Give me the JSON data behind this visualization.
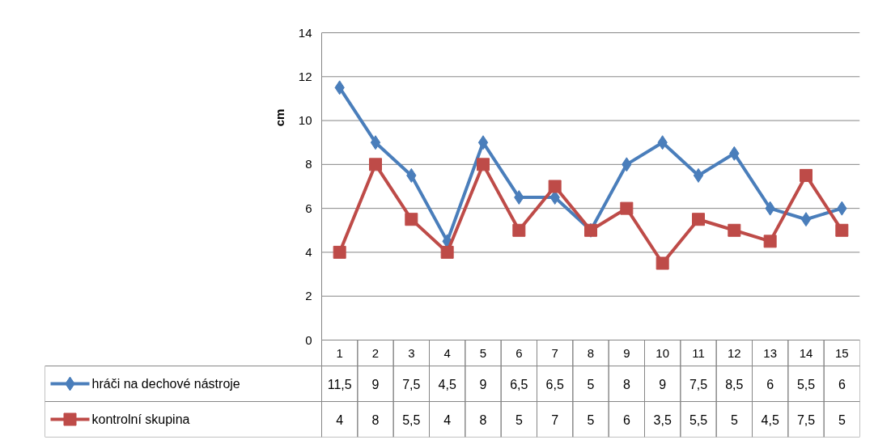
{
  "chart_data": {
    "type": "line",
    "ylabel": "cm",
    "categories": [
      "1",
      "2",
      "3",
      "4",
      "5",
      "6",
      "7",
      "8",
      "9",
      "10",
      "11",
      "12",
      "13",
      "14",
      "15"
    ],
    "series": [
      {
        "name": "hráči na dechové nástroje",
        "color": "#4a7ebb",
        "marker": "diamond",
        "values": [
          11.5,
          9,
          7.5,
          4.5,
          9,
          6.5,
          6.5,
          5,
          8,
          9,
          7.5,
          8.5,
          6,
          5.5,
          6
        ],
        "value_labels": [
          "11,5",
          "9",
          "7,5",
          "4,5",
          "9",
          "6,5",
          "6,5",
          "5",
          "8",
          "9",
          "7,5",
          "8,5",
          "6",
          "5,5",
          "6"
        ]
      },
      {
        "name": "kontrolní skupina",
        "color": "#be4b48",
        "marker": "square",
        "values": [
          4,
          8,
          5.5,
          4,
          8,
          5,
          7,
          5,
          6,
          3.5,
          5.5,
          5,
          4.5,
          7.5,
          5
        ],
        "value_labels": [
          "4",
          "8",
          "5,5",
          "4",
          "8",
          "5",
          "7",
          "5",
          "6",
          "3,5",
          "5,5",
          "5",
          "4,5",
          "7,5",
          "5"
        ]
      }
    ],
    "ylim": [
      0,
      14
    ],
    "yticks": [
      0,
      2,
      4,
      6,
      8,
      10,
      12,
      14
    ],
    "grid": "y",
    "legend": "bottom",
    "line_style": "solid"
  }
}
